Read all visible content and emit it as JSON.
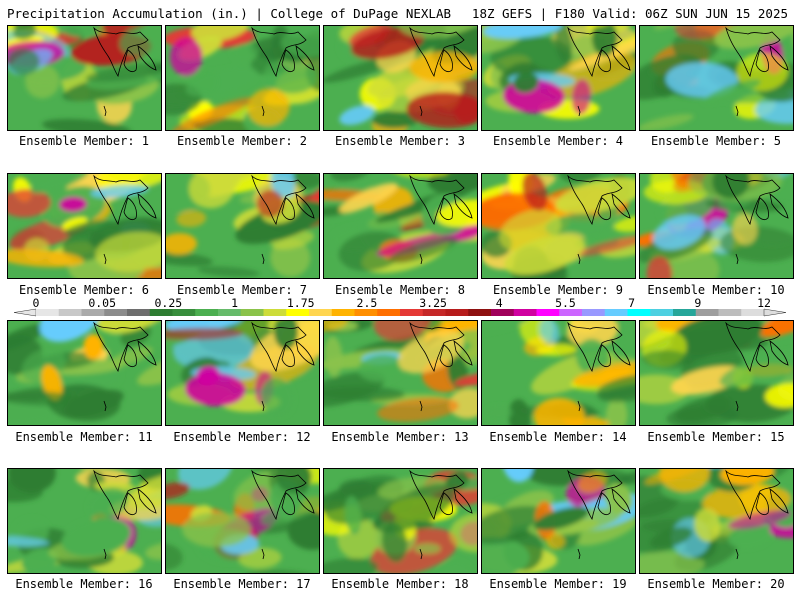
{
  "header": {
    "left": "Precipitation Accumulation (in.) | College of DuPage NEXLAB",
    "right": "18Z GEFS | F180 Valid: 06Z SUN JUN 15 2025"
  },
  "panels": [
    {
      "label": "Ensemble Member: 1"
    },
    {
      "label": "Ensemble Member: 2"
    },
    {
      "label": "Ensemble Member: 3"
    },
    {
      "label": "Ensemble Member: 4"
    },
    {
      "label": "Ensemble Member: 5"
    },
    {
      "label": "Ensemble Member: 6"
    },
    {
      "label": "Ensemble Member: 7"
    },
    {
      "label": "Ensemble Member: 8"
    },
    {
      "label": "Ensemble Member: 9"
    },
    {
      "label": "Ensemble Member: 10"
    },
    {
      "label": "Ensemble Member: 11"
    },
    {
      "label": "Ensemble Member: 12"
    },
    {
      "label": "Ensemble Member: 13"
    },
    {
      "label": "Ensemble Member: 14"
    },
    {
      "label": "Ensemble Member: 15"
    },
    {
      "label": "Ensemble Member: 16"
    },
    {
      "label": "Ensemble Member: 17"
    },
    {
      "label": "Ensemble Member: 18"
    },
    {
      "label": "Ensemble Member: 19"
    },
    {
      "label": "Ensemble Member: 20"
    }
  ],
  "colorbar": {
    "labels": [
      "0",
      "0.05",
      "0.25",
      "1",
      "1.75",
      "2.5",
      "3.25",
      "4",
      "5.5",
      "7",
      "9",
      "12"
    ],
    "colors": [
      "#e6e6e6",
      "#c8c8c8",
      "#aaaaaa",
      "#8c8c8c",
      "#6e6e6e",
      "#2e7d32",
      "#388e3c",
      "#4caf50",
      "#66bb6a",
      "#8bc34a",
      "#cddc39",
      "#ffff00",
      "#ffd54f",
      "#ffb300",
      "#ff8f00",
      "#ff6f00",
      "#e53935",
      "#c62828",
      "#b71c1c",
      "#8e1010",
      "#a0005a",
      "#d000a0",
      "#ff00ff",
      "#cc66ff",
      "#9999ff",
      "#66ccff",
      "#00ffff",
      "#4dd0e1",
      "#26a69a",
      "#9e9e9e",
      "#bdbdbd",
      "#dddddd"
    ]
  },
  "field_colors": [
    "#2e7d32",
    "#4caf50",
    "#8bc34a",
    "#cddc39",
    "#ffff00",
    "#ffd54f",
    "#ffb300",
    "#ff6f00",
    "#e53935",
    "#b71c1c",
    "#d000a0",
    "#66ccff"
  ]
}
